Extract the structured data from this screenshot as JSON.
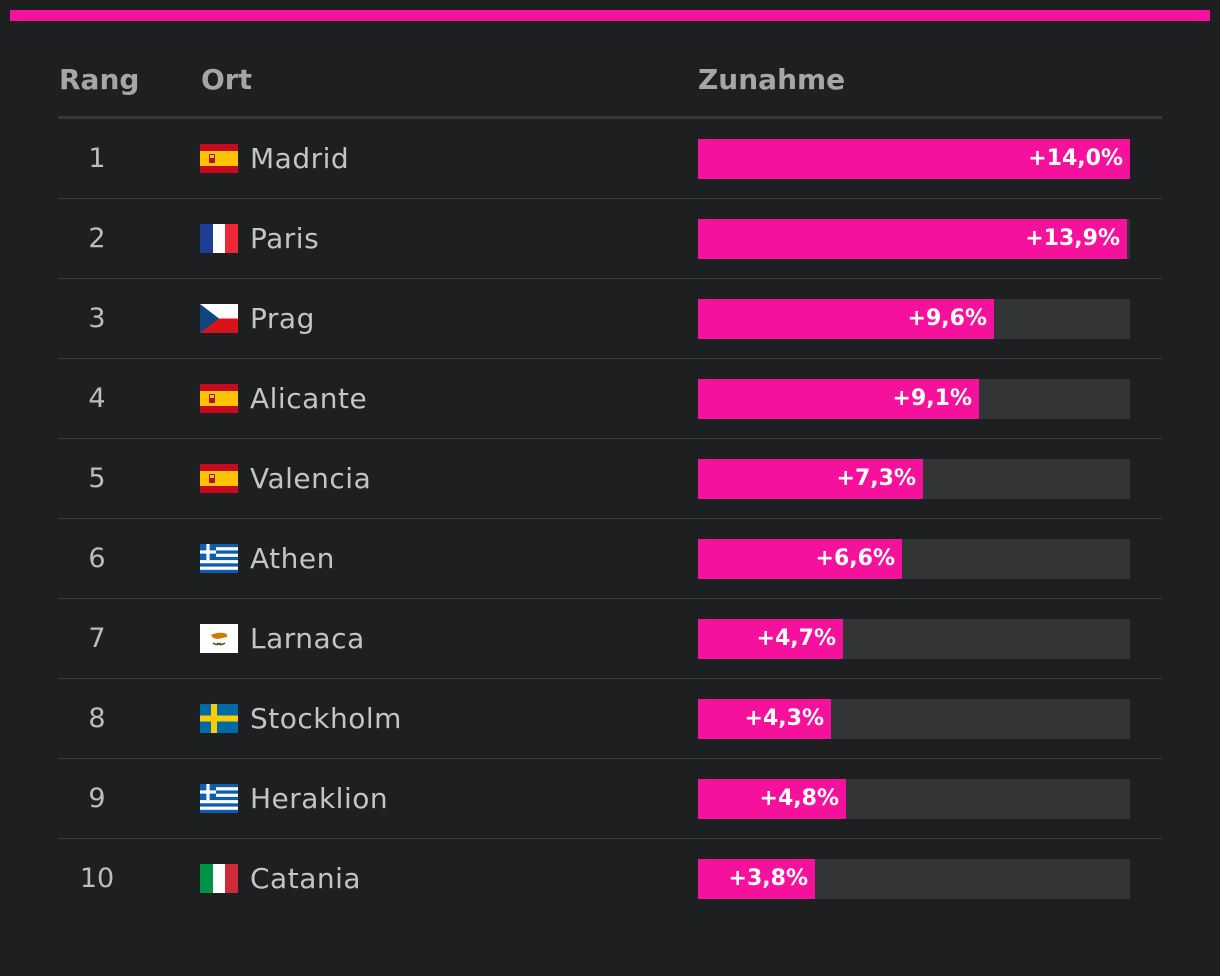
{
  "colors": {
    "background": "#1e1f21",
    "accent": "#f5119b",
    "track": "#333436",
    "header_text": "#a6a6a6",
    "row_text": "#c4c4c4"
  },
  "header": {
    "rank": "Rang",
    "place": "Ort",
    "increase": "Zunahme"
  },
  "chart_data": {
    "type": "bar",
    "orientation": "horizontal",
    "xlim": [
      0,
      14.0
    ],
    "columns": [
      "Rang",
      "Ort",
      "Zunahme"
    ],
    "rows": [
      {
        "rank": "1",
        "city": "Madrid",
        "flag": "spain-flag-icon",
        "value": 14.0,
        "label": "+14,0%"
      },
      {
        "rank": "2",
        "city": "Paris",
        "flag": "france-flag-icon",
        "value": 13.9,
        "label": "+13,9%"
      },
      {
        "rank": "3",
        "city": "Prag",
        "flag": "czech-flag-icon",
        "value": 9.6,
        "label": "+9,6%"
      },
      {
        "rank": "4",
        "city": "Alicante",
        "flag": "spain-flag-icon",
        "value": 9.1,
        "label": "+9,1%"
      },
      {
        "rank": "5",
        "city": "Valencia",
        "flag": "spain-flag-icon",
        "value": 7.3,
        "label": "+7,3%"
      },
      {
        "rank": "6",
        "city": "Athen",
        "flag": "greece-flag-icon",
        "value": 6.6,
        "label": "+6,6%"
      },
      {
        "rank": "7",
        "city": "Larnaca",
        "flag": "cyprus-flag-icon",
        "value": 4.7,
        "label": "+4,7%"
      },
      {
        "rank": "8",
        "city": "Stockholm",
        "flag": "sweden-flag-icon",
        "value": 4.3,
        "label": "+4,3%"
      },
      {
        "rank": "9",
        "city": "Heraklion",
        "flag": "greece-flag-icon",
        "value": 4.8,
        "label": "+4,8%"
      },
      {
        "rank": "10",
        "city": "Catania",
        "flag": "italy-flag-icon",
        "value": 3.8,
        "label": "+3,8%"
      }
    ]
  }
}
